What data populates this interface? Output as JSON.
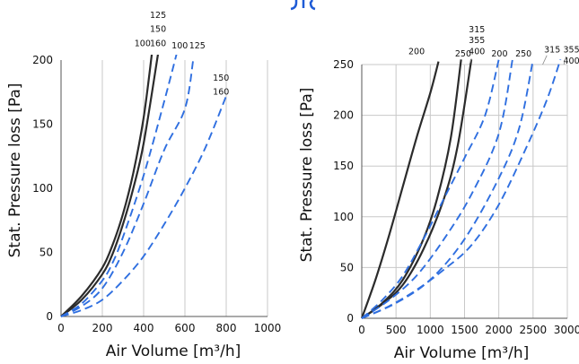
{
  "header_fragment": {
    "color": "#1e5bd6"
  },
  "colors": {
    "solid": "#2b2b2b",
    "dashed": "#2f6fe0",
    "grid": "#c8c8c8"
  },
  "chart_data": [
    {
      "type": "line",
      "xlabel": "Air Volume [m³/h]",
      "ylabel": "Stat. Pressure loss [Pa]",
      "xlim": [
        0,
        1000
      ],
      "ylim": [
        0,
        200
      ],
      "xticks": [
        0,
        200,
        400,
        600,
        800,
        1000
      ],
      "yticks": [
        0,
        50,
        100,
        150,
        200
      ],
      "grid": "vertical",
      "series": [
        {
          "name": "100",
          "style": "solid",
          "points": [
            [
              0,
              0
            ],
            [
              100,
              16
            ],
            [
              200,
              38
            ],
            [
              250,
              56
            ],
            [
              300,
              80
            ],
            [
              350,
              112
            ],
            [
              400,
              155
            ],
            [
              440,
              205
            ]
          ]
        },
        {
          "name": "125 150 160",
          "style": "solid",
          "points": [
            [
              0,
              0
            ],
            [
              100,
              13
            ],
            [
              200,
              33
            ],
            [
              250,
              49
            ],
            [
              300,
              72
            ],
            [
              350,
              100
            ],
            [
              400,
              135
            ],
            [
              470,
              205
            ]
          ]
        },
        {
          "name": "100",
          "style": "dashed",
          "points": [
            [
              0,
              0
            ],
            [
              100,
              10
            ],
            [
              200,
              28
            ],
            [
              250,
              42
            ],
            [
              300,
              62
            ],
            [
              400,
              110
            ],
            [
              500,
              168
            ],
            [
              560,
              205
            ]
          ]
        },
        {
          "name": "125",
          "style": "dashed",
          "points": [
            [
              0,
              0
            ],
            [
              100,
              8
            ],
            [
              200,
              22
            ],
            [
              300,
              50
            ],
            [
              400,
              88
            ],
            [
              500,
              130
            ],
            [
              600,
              162
            ],
            [
              640,
              200
            ]
          ]
        },
        {
          "name": "150 160",
          "style": "dashed",
          "points": [
            [
              0,
              0
            ],
            [
              100,
              5
            ],
            [
              200,
              13
            ],
            [
              300,
              28
            ],
            [
              400,
              47
            ],
            [
              500,
              72
            ],
            [
              600,
              100
            ],
            [
              700,
              132
            ],
            [
              800,
              172
            ]
          ]
        }
      ],
      "labels": [
        {
          "text": "125",
          "x": 470,
          "y": 233
        },
        {
          "text": "150",
          "x": 470,
          "y": 222
        },
        {
          "text": "160",
          "x": 470,
          "y": 211
        },
        {
          "text": "100",
          "x": 395,
          "y": 211
        },
        {
          "text": "100",
          "x": 575,
          "y": 209
        },
        {
          "text": "125",
          "x": 660,
          "y": 209
        },
        {
          "text": "150",
          "x": 775,
          "y": 184
        },
        {
          "text": "160",
          "x": 775,
          "y": 173
        }
      ]
    },
    {
      "type": "line",
      "xlabel": "Air Volume [m³/h]",
      "ylabel": "Stat. Pressure loss [Pa]",
      "xlim": [
        0,
        3000
      ],
      "ylim": [
        0,
        250
      ],
      "xticks": [
        0,
        500,
        1000,
        1500,
        2000,
        2500,
        3000
      ],
      "yticks": [
        0,
        50,
        100,
        150,
        200,
        250
      ],
      "grid": "both",
      "series": [
        {
          "name": "200",
          "style": "solid",
          "points": [
            [
              0,
              0
            ],
            [
              200,
              38
            ],
            [
              400,
              82
            ],
            [
              600,
              130
            ],
            [
              800,
              178
            ],
            [
              1000,
              222
            ],
            [
              1120,
              253
            ]
          ]
        },
        {
          "name": "250",
          "style": "solid",
          "points": [
            [
              0,
              0
            ],
            [
              300,
              15
            ],
            [
              600,
              38
            ],
            [
              900,
              78
            ],
            [
              1100,
              118
            ],
            [
              1300,
              178
            ],
            [
              1450,
              255
            ]
          ]
        },
        {
          "name": "315 355 400",
          "style": "solid",
          "points": [
            [
              0,
              0
            ],
            [
              300,
              14
            ],
            [
              600,
              33
            ],
            [
              900,
              68
            ],
            [
              1200,
              118
            ],
            [
              1400,
              170
            ],
            [
              1600,
              255
            ]
          ]
        },
        {
          "name": "200",
          "style": "dashed",
          "points": [
            [
              0,
              0
            ],
            [
              300,
              18
            ],
            [
              600,
              42
            ],
            [
              900,
              78
            ],
            [
              1200,
              118
            ],
            [
              1500,
              158
            ],
            [
              1800,
              200
            ],
            [
              2000,
              255
            ]
          ]
        },
        {
          "name": "250",
          "style": "dashed",
          "points": [
            [
              0,
              0
            ],
            [
              400,
              18
            ],
            [
              800,
              42
            ],
            [
              1200,
              78
            ],
            [
              1600,
              122
            ],
            [
              2000,
              182
            ],
            [
              2200,
              255
            ]
          ]
        },
        {
          "name": "315",
          "style": "dashed",
          "points": [
            [
              0,
              0
            ],
            [
              500,
              15
            ],
            [
              1000,
              38
            ],
            [
              1500,
              78
            ],
            [
              2000,
              138
            ],
            [
              2300,
              188
            ],
            [
              2500,
              255
            ]
          ]
        },
        {
          "name": "355 400",
          "style": "dashed",
          "points": [
            [
              0,
              0
            ],
            [
              400,
              12
            ],
            [
              800,
              28
            ],
            [
              1200,
              48
            ],
            [
              1600,
              72
            ],
            [
              2000,
              112
            ],
            [
              2400,
              168
            ],
            [
              2700,
              215
            ],
            [
              2900,
              255
            ]
          ]
        }
      ],
      "labels": [
        {
          "text": "200",
          "x": 800,
          "y": 260
        },
        {
          "text": "250",
          "x": 1480,
          "y": 258
        },
        {
          "text": "315",
          "x": 1680,
          "y": 282
        },
        {
          "text": "355",
          "x": 1680,
          "y": 271
        },
        {
          "text": "400",
          "x": 1680,
          "y": 260
        },
        {
          "text": "200",
          "x": 2010,
          "y": 258
        },
        {
          "text": "250",
          "x": 2360,
          "y": 258
        },
        {
          "text": "315",
          "x": 2780,
          "y": 262
        },
        {
          "text": "355",
          "x": 3060,
          "y": 262
        },
        {
          "text": "400",
          "x": 3060,
          "y": 251
        }
      ]
    }
  ]
}
